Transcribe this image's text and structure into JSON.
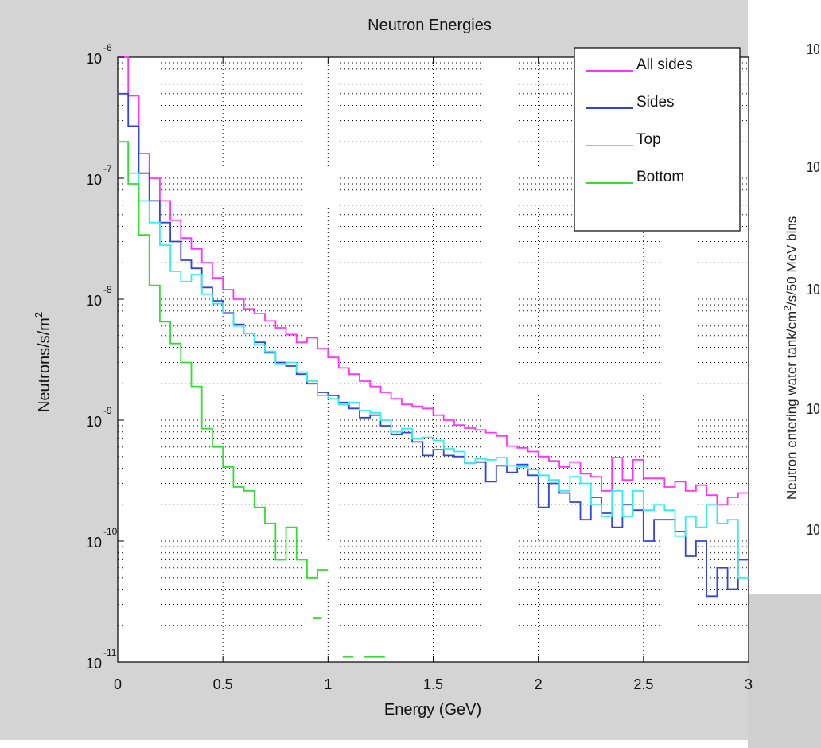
{
  "chart_data": {
    "type": "line",
    "title": "Neutron Energies",
    "xlabel": "Energy (GeV)",
    "ylabel": "Neutrons/s/m",
    "ylabel_superscript": "2",
    "xlim": [
      0,
      3
    ],
    "ylim": [
      1e-11,
      1e-06
    ],
    "yscale": "log",
    "grid": true,
    "legend_position": "top-right",
    "x_ticks": [
      "0",
      "0.5",
      "1",
      "1.5",
      "2",
      "2.5",
      "3"
    ],
    "y_ticks": [
      {
        "base": "10",
        "exp": "-11",
        "value": 1e-11
      },
      {
        "base": "10",
        "exp": "-10",
        "value": 1e-10
      },
      {
        "base": "10",
        "exp": "-9",
        "value": 1e-09
      },
      {
        "base": "10",
        "exp": "-8",
        "value": 1e-08
      },
      {
        "base": "10",
        "exp": "-7",
        "value": 1e-07
      },
      {
        "base": "10",
        "exp": "-6",
        "value": 1e-06
      }
    ],
    "bin_width": 0.05,
    "series": [
      {
        "name": "All sides",
        "color": "#ff33ff",
        "values": [
          1e-06,
          4.8e-07,
          1.6e-07,
          1e-07,
          6.5e-08,
          4.5e-08,
          3.2e-08,
          2.6e-08,
          2e-08,
          1.5e-08,
          1.2e-08,
          1e-08,
          8.3e-09,
          7.6e-09,
          6.6e-09,
          5.8e-09,
          5.1e-09,
          4.4e-09,
          4.8e-09,
          3.9e-09,
          3.3e-09,
          2.7e-09,
          2.4e-09,
          2.1e-09,
          1.9e-09,
          1.7e-09,
          1.5e-09,
          1.35e-09,
          1.3e-09,
          1.25e-09,
          1.1e-09,
          1e-09,
          9.1e-10,
          8.6e-10,
          8.3e-10,
          7.9e-10,
          7.4e-10,
          6.1e-10,
          5.9e-10,
          5.5e-10,
          5e-10,
          4.6e-10,
          4.1e-10,
          4.5e-10,
          3.6e-10,
          3.4e-10,
          2.6e-10,
          4.9e-10,
          3.2e-10,
          4.7e-10,
          3.3e-10,
          3.3e-10,
          2.8e-10,
          3.1e-10,
          2.6e-10,
          2.9e-10,
          2.4e-10,
          2e-10,
          2.3e-10,
          2.5e-10
        ]
      },
      {
        "name": "Sides",
        "color": "#3344dd",
        "values": [
          5e-07,
          2.7e-07,
          1.1e-07,
          6.5e-08,
          4.3e-08,
          3e-08,
          2.1e-08,
          1.8e-08,
          1.25e-08,
          9.7e-09,
          7.7e-09,
          6.2e-09,
          5.2e-09,
          4.4e-09,
          3.6e-09,
          3e-09,
          2.8e-09,
          2.4e-09,
          2e-09,
          1.7e-09,
          1.6e-09,
          1.4e-09,
          1.25e-09,
          1.05e-09,
          1.1e-09,
          9e-10,
          7.6e-10,
          7.9e-10,
          6.6e-10,
          5.1e-10,
          5.7e-10,
          5.1e-10,
          5e-10,
          4.4e-10,
          4.5e-10,
          3.1e-10,
          4.2e-10,
          3.7e-10,
          4.3e-10,
          3.5e-10,
          1.9e-10,
          3e-10,
          2.5e-10,
          2.1e-10,
          1.5e-10,
          2.3e-10,
          1.7e-10,
          1.3e-10,
          2e-10,
          1.8e-10,
          1e-10,
          1.5e-10,
          1.5e-10,
          1.2e-10,
          7.5e-11,
          1e-10,
          3.5e-11,
          6e-11,
          4e-11,
          7e-11
        ]
      },
      {
        "name": "Top",
        "color": "#33eeee",
        "values": [
          2e-07,
          1.1e-07,
          6.5e-08,
          4.3e-08,
          2.8e-08,
          1.7e-08,
          1.4e-08,
          1.6e-08,
          1.1e-08,
          9.2e-09,
          7.6e-09,
          6e-09,
          5.2e-09,
          4.2e-09,
          3.7e-09,
          2.9e-09,
          3e-09,
          2.5e-09,
          2.1e-09,
          1.6e-09,
          1.5e-09,
          1.35e-09,
          1.4e-09,
          1.2e-09,
          1.15e-09,
          1e-09,
          8e-10,
          8.5e-10,
          7e-10,
          7.2e-10,
          6.8e-10,
          5.8e-10,
          5.5e-10,
          4.4e-10,
          4.8e-10,
          4.7e-10,
          4.9e-10,
          4.2e-10,
          4.1e-10,
          3.9e-10,
          3.5e-10,
          3.2e-10,
          2.6e-10,
          3.4e-10,
          3e-10,
          2e-10,
          1.6e-10,
          2.6e-10,
          1.6e-10,
          2.6e-10,
          1.8e-10,
          2e-10,
          1.8e-10,
          1.1e-10,
          1.6e-10,
          1.3e-10,
          2e-10,
          1.4e-10,
          1.5e-10,
          5e-11
        ]
      },
      {
        "name": "Bottom",
        "color": "#33dd33",
        "values": [
          2e-07,
          9e-08,
          3.4e-08,
          1.3e-08,
          6.5e-09,
          4.3e-09,
          3e-09,
          1.9e-09,
          8.5e-10,
          6e-10,
          4.1e-10,
          2.8e-10,
          2.6e-10,
          1.9e-10,
          1.4e-10,
          7e-11,
          1.3e-10,
          7e-11,
          5e-11,
          5.8e-11,
          null,
          null,
          null,
          null,
          null,
          null,
          null,
          null,
          null,
          null,
          null,
          null,
          null,
          null,
          null,
          null,
          null,
          null,
          null,
          null,
          null,
          null,
          null,
          null,
          null,
          null,
          null,
          null,
          null,
          null,
          null,
          null,
          null,
          null,
          null,
          null,
          null,
          null,
          null,
          null
        ]
      }
    ],
    "isolated_segments": [
      {
        "series": "Bottom",
        "x0": 0.93,
        "x1": 0.97,
        "y": 2.3e-11
      },
      {
        "series": "Bottom",
        "x0": 1.07,
        "x1": 1.12,
        "y": 1.1e-11
      },
      {
        "series": "Bottom",
        "x0": 1.17,
        "x1": 1.27,
        "y": 1.1e-11
      }
    ]
  },
  "right_panel": {
    "tick_fragments": [
      "10",
      "10",
      "10",
      "10",
      "10"
    ],
    "ylabel": "Neutron entering water tank/cm",
    "ylabel_sup": "2",
    "ylabel_tail": "/s/50 MeV bins"
  }
}
